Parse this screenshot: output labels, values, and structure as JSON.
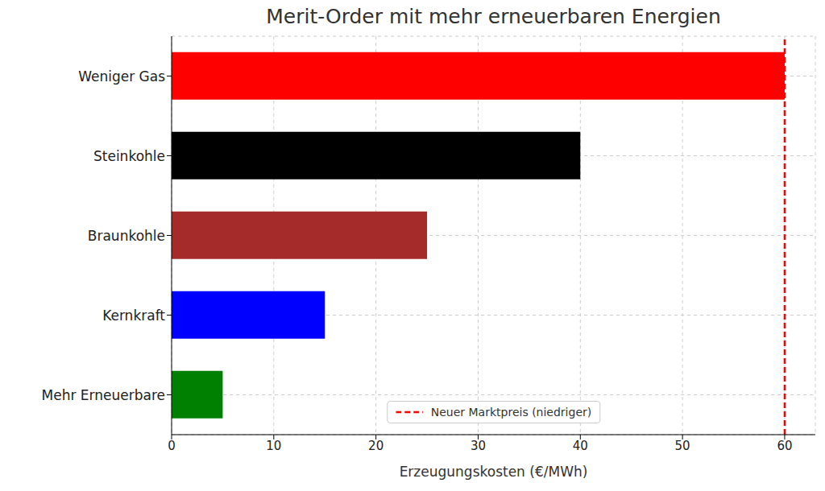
{
  "chart_data": {
    "type": "bar",
    "title": "Merit-Order mit mehr erneuerbaren Energien",
    "orientation": "horizontal",
    "categories": [
      "Weniger Gas",
      "Steinkohle",
      "Braunkohle",
      "Kernkraft",
      "Mehr Erneuerbare"
    ],
    "values": [
      60,
      40,
      25,
      15,
      5
    ],
    "colors": [
      "#ff0000",
      "#000000",
      "#a52a2a",
      "#0000ff",
      "#008000"
    ],
    "x_label": "Erzeugungskosten (€/MWh)",
    "xlim": [
      0,
      63
    ],
    "xticks": [
      0,
      10,
      20,
      30,
      40,
      50,
      60
    ],
    "grid": true,
    "legend": "lower center",
    "reference_line": {
      "name": "Neuer Marktpreis (niedriger)",
      "value": 60,
      "color": "#ff0000",
      "line_style": "dashed"
    }
  }
}
